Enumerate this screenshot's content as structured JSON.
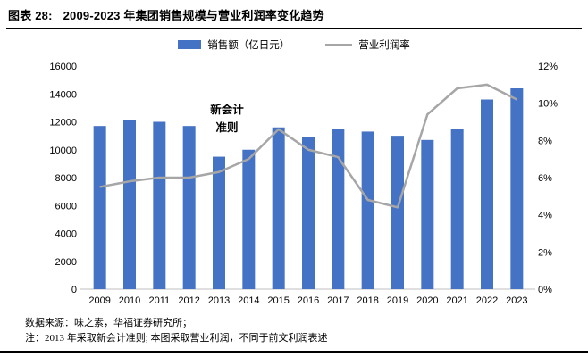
{
  "header": {
    "label": "图表 28:",
    "title": "2009-2023 年集团销售规模与营业利润率变化趋势"
  },
  "annotation": {
    "text": "新会计\n准则"
  },
  "footer": {
    "line1": "数据来源：味之素，华福证券研究所；",
    "line2": "注：2013 年采取新会计准则; 本图采取营业利润，不同于前文利润表述"
  },
  "chart_data": {
    "type": "bar",
    "combo": "bar+line-dual-axis",
    "title": "2009-2023 年集团销售规模与营业利润率变化趋势",
    "categories": [
      "2009",
      "2010",
      "2011",
      "2012",
      "2013",
      "2014",
      "2015",
      "2016",
      "2017",
      "2018",
      "2019",
      "2020",
      "2021",
      "2022",
      "2023"
    ],
    "series": [
      {
        "name": "销售额（亿日元）",
        "type": "bar",
        "axis": "left",
        "color": "#4472C4",
        "values": [
          11700,
          12100,
          12000,
          11700,
          9500,
          10000,
          11600,
          10900,
          11500,
          11300,
          11000,
          10700,
          11500,
          13600,
          14400
        ]
      },
      {
        "name": "营业利润率",
        "type": "line",
        "axis": "right",
        "color": "#A6A6A6",
        "values": [
          5.5,
          5.8,
          6.0,
          6.0,
          6.3,
          7.0,
          8.6,
          7.5,
          7.1,
          4.8,
          4.4,
          9.4,
          10.8,
          11.0,
          10.2
        ]
      }
    ],
    "left_axis": {
      "min": 0,
      "max": 16000,
      "step": 2000,
      "suffix": ""
    },
    "right_axis": {
      "min": 0,
      "max": 12,
      "step": 2,
      "suffix": "%"
    },
    "grid": false,
    "legend_position": "top",
    "baseline_color": "#BFBFBF"
  }
}
